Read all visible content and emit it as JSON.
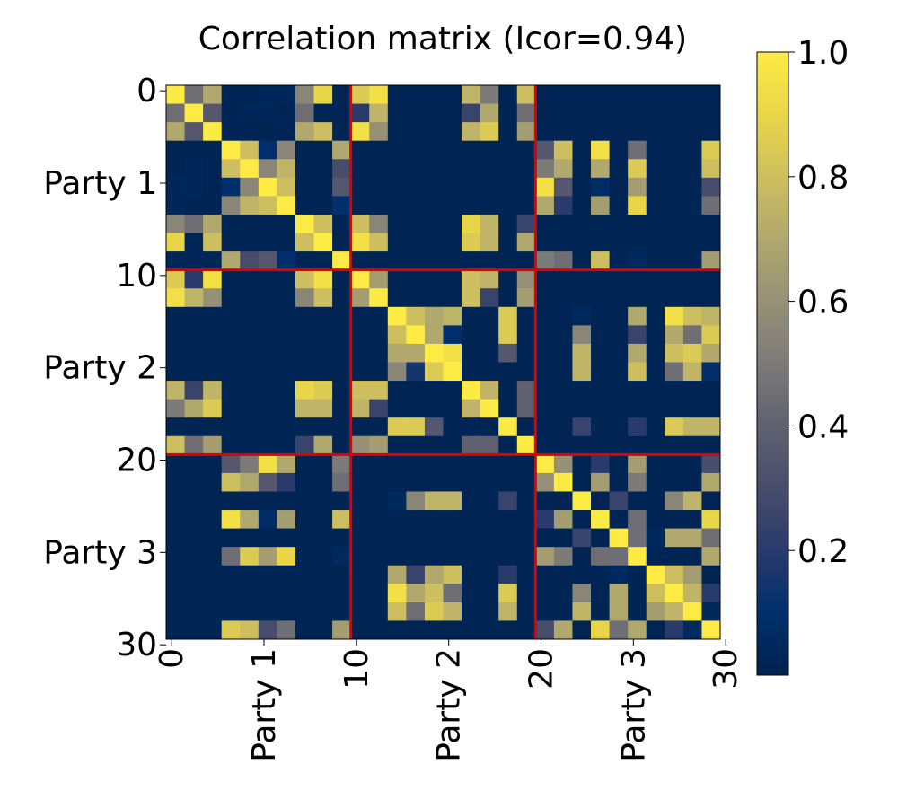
{
  "chart_data": {
    "type": "heatmap",
    "title": "Correlation matrix (Icor=0.94)",
    "size": 30,
    "vlim": [
      0.0,
      1.0
    ],
    "x_ticks": [
      {
        "pos": 0,
        "label": "0"
      },
      {
        "pos": 5,
        "label": "Party 1"
      },
      {
        "pos": 10,
        "label": "10"
      },
      {
        "pos": 15,
        "label": "Party 2"
      },
      {
        "pos": 20,
        "label": "20"
      },
      {
        "pos": 25,
        "label": "Party 3"
      },
      {
        "pos": 30,
        "label": "30"
      }
    ],
    "y_ticks": [
      {
        "pos": 0,
        "label": "0"
      },
      {
        "pos": 5,
        "label": "Party 1"
      },
      {
        "pos": 10,
        "label": "10"
      },
      {
        "pos": 15,
        "label": "Party 2"
      },
      {
        "pos": 20,
        "label": "20"
      },
      {
        "pos": 25,
        "label": "Party 3"
      },
      {
        "pos": 30,
        "label": "30"
      }
    ],
    "dividers": [
      9.5,
      19.5
    ],
    "divider_color": "#e00000",
    "colormap": "cividis",
    "colorbar": {
      "position": "right",
      "ticks": [
        {
          "value": 0.2,
          "label": "0.2"
        },
        {
          "value": 0.4,
          "label": "0.4"
        },
        {
          "value": 0.6,
          "label": "0.6"
        },
        {
          "value": 0.8,
          "label": "0.8"
        },
        {
          "value": 1.0,
          "label": "1.0"
        }
      ]
    },
    "matrix": [
      [
        1.0,
        0.45,
        0.7,
        0.02,
        0.02,
        0.04,
        0.04,
        0.55,
        0.9,
        0.03,
        0.85,
        0.95,
        0.02,
        0.02,
        0.02,
        0.02,
        0.75,
        0.5,
        0.02,
        0.8,
        0.02,
        0.02,
        0.02,
        0.02,
        0.02,
        0.02,
        0.02,
        0.02,
        0.02,
        0.02
      ],
      [
        0.45,
        1.0,
        0.35,
        0.02,
        0.04,
        0.04,
        0.02,
        0.45,
        0.03,
        0.03,
        0.2,
        0.75,
        0.02,
        0.02,
        0.02,
        0.02,
        0.25,
        0.7,
        0.02,
        0.45,
        0.02,
        0.02,
        0.02,
        0.02,
        0.02,
        0.02,
        0.02,
        0.02,
        0.02,
        0.02
      ],
      [
        0.7,
        0.35,
        1.0,
        0.02,
        0.02,
        0.02,
        0.02,
        0.7,
        0.8,
        0.03,
        0.95,
        0.6,
        0.02,
        0.02,
        0.02,
        0.02,
        0.75,
        0.85,
        0.02,
        0.65,
        0.02,
        0.02,
        0.02,
        0.02,
        0.02,
        0.02,
        0.02,
        0.02,
        0.02,
        0.02
      ],
      [
        0.02,
        0.02,
        0.02,
        1.0,
        0.8,
        0.1,
        0.55,
        0.02,
        0.02,
        0.7,
        0.02,
        0.02,
        0.02,
        0.02,
        0.02,
        0.02,
        0.02,
        0.02,
        0.02,
        0.02,
        0.35,
        0.8,
        0.02,
        0.95,
        0.02,
        0.45,
        0.02,
        0.02,
        0.02,
        0.85
      ],
      [
        0.02,
        0.04,
        0.02,
        0.8,
        1.0,
        0.55,
        0.75,
        0.02,
        0.02,
        0.3,
        0.02,
        0.02,
        0.02,
        0.02,
        0.02,
        0.02,
        0.02,
        0.02,
        0.02,
        0.02,
        0.5,
        0.7,
        0.02,
        0.7,
        0.02,
        0.85,
        0.02,
        0.02,
        0.02,
        0.8
      ],
      [
        0.04,
        0.04,
        0.02,
        0.1,
        0.55,
        1.0,
        0.8,
        0.02,
        0.02,
        0.35,
        0.02,
        0.02,
        0.02,
        0.02,
        0.02,
        0.02,
        0.02,
        0.02,
        0.02,
        0.02,
        0.95,
        0.35,
        0.02,
        0.08,
        0.02,
        0.65,
        0.02,
        0.02,
        0.02,
        0.3
      ],
      [
        0.04,
        0.02,
        0.02,
        0.55,
        0.75,
        0.8,
        1.0,
        0.02,
        0.02,
        0.1,
        0.02,
        0.02,
        0.02,
        0.02,
        0.02,
        0.02,
        0.02,
        0.02,
        0.02,
        0.02,
        0.7,
        0.2,
        0.02,
        0.65,
        0.02,
        0.9,
        0.02,
        0.02,
        0.02,
        0.45
      ],
      [
        0.55,
        0.45,
        0.7,
        0.02,
        0.02,
        0.02,
        0.02,
        1.0,
        0.8,
        0.02,
        0.8,
        0.55,
        0.02,
        0.02,
        0.02,
        0.02,
        0.9,
        0.75,
        0.02,
        0.25,
        0.02,
        0.02,
        0.02,
        0.02,
        0.02,
        0.02,
        0.02,
        0.02,
        0.02,
        0.02
      ],
      [
        0.9,
        0.03,
        0.8,
        0.02,
        0.02,
        0.02,
        0.02,
        0.8,
        1.0,
        0.02,
        0.95,
        0.8,
        0.02,
        0.02,
        0.02,
        0.02,
        0.85,
        0.75,
        0.02,
        0.7,
        0.02,
        0.02,
        0.02,
        0.02,
        0.02,
        0.02,
        0.02,
        0.02,
        0.02,
        0.02
      ],
      [
        0.03,
        0.03,
        0.03,
        0.7,
        0.3,
        0.35,
        0.1,
        0.02,
        0.02,
        1.0,
        0.02,
        0.02,
        0.02,
        0.02,
        0.02,
        0.02,
        0.02,
        0.02,
        0.02,
        0.02,
        0.5,
        0.45,
        0.02,
        0.8,
        0.02,
        0.05,
        0.02,
        0.02,
        0.02,
        0.65
      ],
      [
        0.85,
        0.2,
        0.95,
        0.02,
        0.02,
        0.02,
        0.02,
        0.8,
        0.95,
        0.02,
        1.0,
        0.65,
        0.02,
        0.02,
        0.02,
        0.02,
        0.8,
        0.75,
        0.02,
        0.6,
        0.02,
        0.02,
        0.02,
        0.02,
        0.02,
        0.02,
        0.02,
        0.02,
        0.02,
        0.02
      ],
      [
        0.95,
        0.75,
        0.6,
        0.02,
        0.02,
        0.02,
        0.02,
        0.55,
        0.8,
        0.02,
        0.65,
        1.0,
        0.02,
        0.02,
        0.02,
        0.02,
        0.8,
        0.25,
        0.02,
        0.65,
        0.02,
        0.02,
        0.02,
        0.02,
        0.02,
        0.02,
        0.02,
        0.02,
        0.02,
        0.02
      ],
      [
        0.02,
        0.02,
        0.02,
        0.02,
        0.02,
        0.02,
        0.02,
        0.02,
        0.02,
        0.02,
        0.02,
        0.02,
        1.0,
        0.8,
        0.7,
        0.75,
        0.02,
        0.02,
        0.85,
        0.02,
        0.02,
        0.02,
        0.05,
        0.02,
        0.02,
        0.7,
        0.02,
        0.95,
        0.8,
        0.75
      ],
      [
        0.02,
        0.02,
        0.02,
        0.02,
        0.02,
        0.02,
        0.02,
        0.02,
        0.02,
        0.02,
        0.02,
        0.02,
        0.8,
        1.0,
        0.7,
        0.1,
        0.02,
        0.02,
        0.85,
        0.02,
        0.02,
        0.02,
        0.55,
        0.02,
        0.02,
        0.25,
        0.02,
        0.7,
        0.45,
        0.85
      ],
      [
        0.02,
        0.02,
        0.02,
        0.02,
        0.02,
        0.02,
        0.02,
        0.02,
        0.02,
        0.02,
        0.02,
        0.02,
        0.7,
        0.7,
        1.0,
        0.95,
        0.02,
        0.02,
        0.35,
        0.02,
        0.02,
        0.02,
        0.75,
        0.02,
        0.02,
        0.7,
        0.02,
        0.8,
        0.85,
        0.7
      ],
      [
        0.02,
        0.02,
        0.02,
        0.02,
        0.02,
        0.02,
        0.02,
        0.02,
        0.02,
        0.02,
        0.02,
        0.02,
        0.55,
        0.15,
        0.85,
        1.0,
        0.02,
        0.02,
        0.02,
        0.02,
        0.02,
        0.02,
        0.75,
        0.02,
        0.02,
        0.8,
        0.02,
        0.45,
        0.75,
        0.1
      ],
      [
        0.75,
        0.25,
        0.75,
        0.02,
        0.02,
        0.02,
        0.02,
        0.9,
        0.85,
        0.02,
        0.8,
        0.8,
        0.02,
        0.02,
        0.02,
        0.02,
        1.0,
        0.75,
        0.02,
        0.4,
        0.02,
        0.02,
        0.02,
        0.02,
        0.02,
        0.02,
        0.02,
        0.02,
        0.02,
        0.02
      ],
      [
        0.5,
        0.7,
        0.85,
        0.02,
        0.02,
        0.02,
        0.02,
        0.75,
        0.75,
        0.02,
        0.75,
        0.25,
        0.02,
        0.02,
        0.02,
        0.02,
        0.75,
        1.0,
        0.02,
        0.4,
        0.02,
        0.02,
        0.02,
        0.02,
        0.02,
        0.02,
        0.02,
        0.02,
        0.02,
        0.02
      ],
      [
        0.02,
        0.02,
        0.02,
        0.02,
        0.02,
        0.02,
        0.02,
        0.02,
        0.02,
        0.02,
        0.02,
        0.02,
        0.85,
        0.85,
        0.35,
        0.02,
        0.02,
        0.02,
        1.0,
        0.02,
        0.02,
        0.02,
        0.25,
        0.02,
        0.02,
        0.2,
        0.02,
        0.85,
        0.75,
        0.75
      ],
      [
        0.8,
        0.45,
        0.65,
        0.02,
        0.02,
        0.02,
        0.02,
        0.25,
        0.7,
        0.02,
        0.6,
        0.65,
        0.02,
        0.02,
        0.02,
        0.02,
        0.4,
        0.4,
        0.02,
        1.0,
        0.02,
        0.02,
        0.02,
        0.02,
        0.02,
        0.02,
        0.02,
        0.02,
        0.02,
        0.02
      ],
      [
        0.02,
        0.02,
        0.02,
        0.35,
        0.5,
        0.95,
        0.7,
        0.02,
        0.02,
        0.5,
        0.02,
        0.02,
        0.02,
        0.02,
        0.02,
        0.02,
        0.02,
        0.02,
        0.02,
        0.02,
        1.0,
        0.6,
        0.02,
        0.2,
        0.02,
        0.65,
        0.02,
        0.02,
        0.02,
        0.3
      ],
      [
        0.02,
        0.02,
        0.02,
        0.8,
        0.7,
        0.35,
        0.2,
        0.02,
        0.02,
        0.45,
        0.02,
        0.02,
        0.02,
        0.02,
        0.02,
        0.02,
        0.02,
        0.02,
        0.02,
        0.02,
        0.6,
        1.0,
        0.02,
        0.65,
        0.02,
        0.5,
        0.02,
        0.02,
        0.02,
        0.7
      ],
      [
        0.02,
        0.02,
        0.02,
        0.02,
        0.02,
        0.02,
        0.02,
        0.02,
        0.02,
        0.02,
        0.02,
        0.02,
        0.05,
        0.55,
        0.75,
        0.75,
        0.02,
        0.02,
        0.25,
        0.02,
        0.02,
        0.02,
        1.0,
        0.02,
        0.25,
        0.02,
        0.02,
        0.55,
        0.75,
        0.02
      ],
      [
        0.02,
        0.02,
        0.02,
        0.95,
        0.7,
        0.08,
        0.65,
        0.02,
        0.02,
        0.8,
        0.02,
        0.02,
        0.02,
        0.02,
        0.02,
        0.02,
        0.02,
        0.02,
        0.02,
        0.02,
        0.2,
        0.65,
        0.02,
        1.0,
        0.02,
        0.45,
        0.02,
        0.02,
        0.02,
        0.9
      ],
      [
        0.02,
        0.02,
        0.02,
        0.02,
        0.02,
        0.02,
        0.02,
        0.02,
        0.02,
        0.02,
        0.02,
        0.02,
        0.02,
        0.02,
        0.02,
        0.02,
        0.02,
        0.02,
        0.02,
        0.02,
        0.02,
        0.02,
        0.25,
        0.02,
        1.0,
        0.45,
        0.05,
        0.7,
        0.7,
        0.45
      ],
      [
        0.02,
        0.02,
        0.02,
        0.45,
        0.85,
        0.65,
        0.9,
        0.02,
        0.02,
        0.05,
        0.02,
        0.02,
        0.02,
        0.02,
        0.02,
        0.02,
        0.02,
        0.02,
        0.02,
        0.02,
        0.65,
        0.5,
        0.02,
        0.45,
        0.45,
        1.0,
        0.02,
        0.02,
        0.02,
        0.7
      ],
      [
        0.02,
        0.02,
        0.02,
        0.02,
        0.02,
        0.02,
        0.02,
        0.02,
        0.02,
        0.02,
        0.02,
        0.02,
        0.7,
        0.25,
        0.7,
        0.8,
        0.02,
        0.02,
        0.2,
        0.02,
        0.02,
        0.02,
        0.02,
        0.02,
        0.05,
        0.02,
        1.0,
        0.8,
        0.65,
        0.02
      ],
      [
        0.02,
        0.02,
        0.02,
        0.02,
        0.02,
        0.02,
        0.02,
        0.02,
        0.02,
        0.02,
        0.02,
        0.02,
        0.95,
        0.7,
        0.8,
        0.45,
        0.02,
        0.02,
        0.85,
        0.02,
        0.02,
        0.02,
        0.55,
        0.02,
        0.7,
        0.02,
        0.8,
        1.0,
        0.75,
        0.2
      ],
      [
        0.02,
        0.02,
        0.02,
        0.02,
        0.02,
        0.02,
        0.02,
        0.02,
        0.02,
        0.02,
        0.02,
        0.02,
        0.8,
        0.45,
        0.85,
        0.75,
        0.02,
        0.02,
        0.75,
        0.02,
        0.02,
        0.02,
        0.75,
        0.02,
        0.7,
        0.02,
        0.65,
        0.75,
        1.0,
        0.05
      ],
      [
        0.02,
        0.02,
        0.02,
        0.85,
        0.8,
        0.3,
        0.45,
        0.02,
        0.02,
        0.65,
        0.02,
        0.02,
        0.02,
        0.02,
        0.02,
        0.02,
        0.02,
        0.02,
        0.02,
        0.02,
        0.3,
        0.7,
        0.02,
        0.9,
        0.45,
        0.7,
        0.02,
        0.2,
        0.05,
        1.0
      ]
    ]
  }
}
